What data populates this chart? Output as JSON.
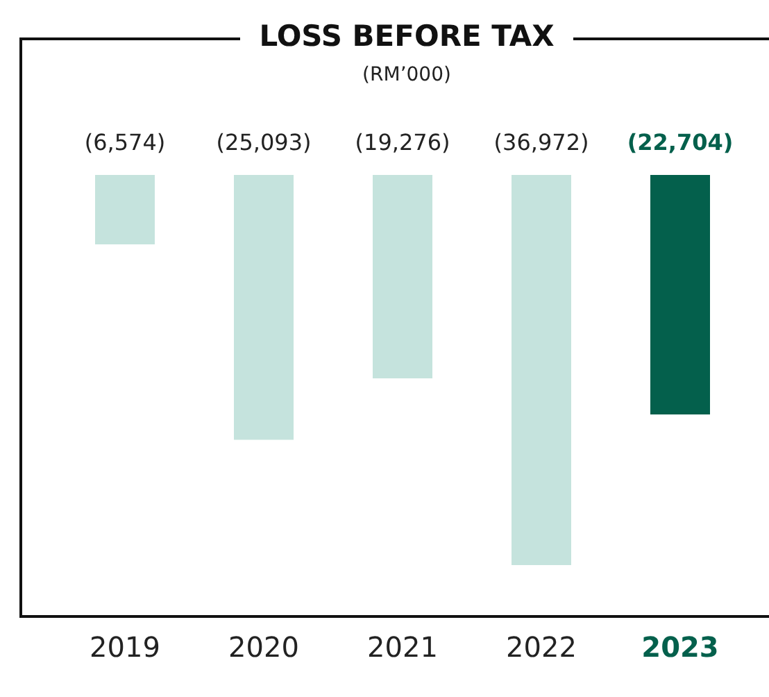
{
  "chart_data": {
    "type": "bar",
    "title": "LOSS BEFORE TAX",
    "subtitle": "(RM’000)",
    "categories": [
      "2019",
      "2020",
      "2021",
      "2022",
      "2023"
    ],
    "values": [
      -6574,
      -25093,
      -19276,
      -36972,
      -22704
    ],
    "colors": [
      "#c5e3dd",
      "#c5e3dd",
      "#c5e3dd",
      "#c5e3dd",
      "#04604c"
    ],
    "value_labels": [
      "(6,574)",
      "(25,093)",
      "(19,276)",
      "(36,972)",
      "(22,704)"
    ],
    "legend": false,
    "grid": false
  }
}
